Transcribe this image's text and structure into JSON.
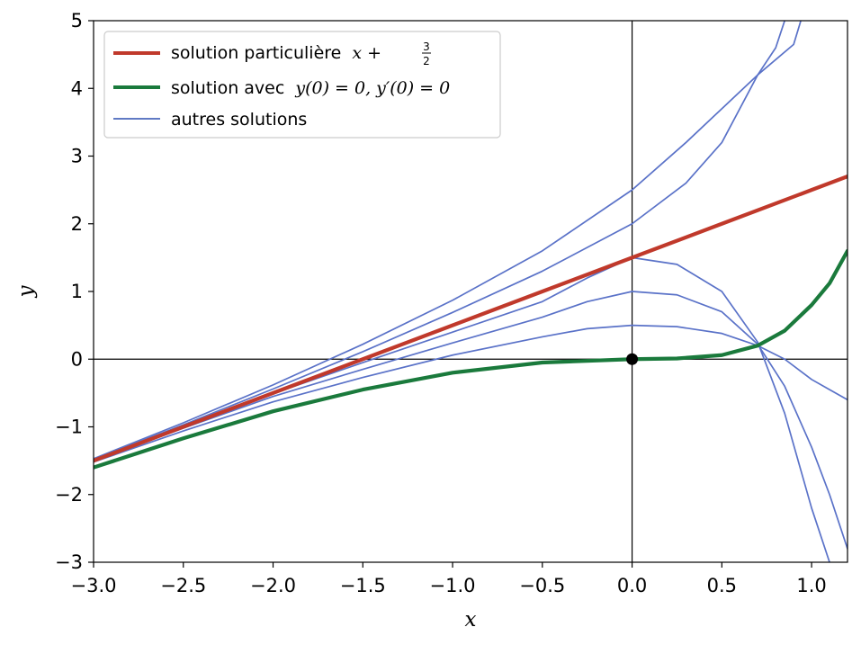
{
  "chart_data": {
    "type": "line",
    "title": "",
    "xlabel": "x",
    "ylabel": "y",
    "xlim": [
      -3.0,
      1.2
    ],
    "ylim": [
      -3,
      5
    ],
    "x_ticks": [
      "−3.0",
      "−2.5",
      "−2.0",
      "−1.5",
      "−1.0",
      "−0.5",
      "0.0",
      "0.5",
      "1.0"
    ],
    "x_tick_values": [
      -3.0,
      -2.5,
      -2.0,
      -1.5,
      -1.0,
      -0.5,
      0.0,
      0.5,
      1.0
    ],
    "y_ticks": [
      "−3",
      "−2",
      "−1",
      "0",
      "1",
      "2",
      "3",
      "4",
      "5"
    ],
    "y_tick_values": [
      -3,
      -2,
      -1,
      0,
      1,
      2,
      3,
      4,
      5
    ],
    "grid": false,
    "reference_lines": {
      "x": 0,
      "y": 0
    },
    "legend_position": "top-left",
    "legend": [
      {
        "label": "solution particulière",
        "math": "x + ",
        "frac_num": "3",
        "frac_den": "2",
        "color": "#c0392b"
      },
      {
        "label": "solution avec",
        "math": "y(0) = 0, y′(0) = 0",
        "color": "#1a7a3c"
      },
      {
        "label": "autres solutions",
        "color": "#2c4fb0"
      }
    ],
    "marked_point": {
      "x": 0,
      "y": 0,
      "color": "#000000"
    },
    "series": [
      {
        "role": "particular",
        "color": "#c0392b",
        "points": [
          [
            -3.0,
            -1.5
          ],
          [
            -2.5,
            -1.0
          ],
          [
            -2.0,
            -0.5
          ],
          [
            -1.5,
            0.0
          ],
          [
            -1.0,
            0.5
          ],
          [
            -0.5,
            1.0
          ],
          [
            0.0,
            1.5
          ],
          [
            0.5,
            2.0
          ],
          [
            1.0,
            2.5
          ],
          [
            1.2,
            2.7
          ]
        ]
      },
      {
        "role": "initial-condition",
        "color": "#1a7a3c",
        "points": [
          [
            -3.0,
            -1.6
          ],
          [
            -2.5,
            -1.17
          ],
          [
            -2.0,
            -0.77
          ],
          [
            -1.5,
            -0.45
          ],
          [
            -1.0,
            -0.2
          ],
          [
            -0.5,
            -0.05
          ],
          [
            0.0,
            0.0
          ],
          [
            0.25,
            0.01
          ],
          [
            0.5,
            0.06
          ],
          [
            0.7,
            0.2
          ],
          [
            0.85,
            0.42
          ],
          [
            1.0,
            0.8
          ],
          [
            1.1,
            1.12
          ],
          [
            1.2,
            1.6
          ]
        ]
      },
      {
        "role": "other",
        "color": "#5a72c8",
        "points": [
          [
            -3.0,
            -1.47
          ],
          [
            -2.5,
            -0.94
          ],
          [
            -2.0,
            -0.38
          ],
          [
            -1.5,
            0.22
          ],
          [
            -1.0,
            0.87
          ],
          [
            -0.5,
            1.6
          ],
          [
            0.0,
            2.5
          ],
          [
            0.3,
            3.2
          ],
          [
            0.5,
            3.7
          ],
          [
            0.7,
            4.2
          ],
          [
            0.9,
            4.65
          ],
          [
            0.94,
            5.0
          ]
        ]
      },
      {
        "role": "other",
        "color": "#5a72c8",
        "points": [
          [
            -3.0,
            -1.48
          ],
          [
            -2.5,
            -0.97
          ],
          [
            -2.0,
            -0.44
          ],
          [
            -1.5,
            0.11
          ],
          [
            -1.0,
            0.69
          ],
          [
            -0.5,
            1.3
          ],
          [
            0.0,
            2.0
          ],
          [
            0.3,
            2.6
          ],
          [
            0.5,
            3.2
          ],
          [
            0.7,
            4.2
          ],
          [
            0.8,
            4.6
          ],
          [
            0.85,
            5.0
          ]
        ]
      },
      {
        "role": "other",
        "color": "#5a72c8",
        "points": [
          [
            -3.0,
            -1.5
          ],
          [
            -2.5,
            -1.0
          ],
          [
            -2.0,
            -0.51
          ],
          [
            -1.5,
            -0.05
          ],
          [
            -1.0,
            0.4
          ],
          [
            -0.5,
            0.85
          ],
          [
            -0.25,
            1.2
          ],
          [
            0.0,
            1.5
          ],
          [
            0.25,
            1.4
          ],
          [
            0.5,
            1.0
          ],
          [
            0.7,
            0.25
          ],
          [
            0.85,
            -0.8
          ],
          [
            1.0,
            -2.2
          ],
          [
            1.1,
            -3.0
          ]
        ]
      },
      {
        "role": "other",
        "color": "#5a72c8",
        "points": [
          [
            -3.0,
            -1.5
          ],
          [
            -2.5,
            -1.02
          ],
          [
            -2.0,
            -0.55
          ],
          [
            -1.5,
            -0.15
          ],
          [
            -1.0,
            0.24
          ],
          [
            -0.5,
            0.62
          ],
          [
            -0.25,
            0.85
          ],
          [
            0.0,
            1.0
          ],
          [
            0.25,
            0.95
          ],
          [
            0.5,
            0.7
          ],
          [
            0.7,
            0.22
          ],
          [
            0.85,
            -0.4
          ],
          [
            1.0,
            -1.3
          ],
          [
            1.1,
            -2.0
          ],
          [
            1.2,
            -2.8
          ]
        ]
      },
      {
        "role": "other",
        "color": "#5a72c8",
        "points": [
          [
            -3.0,
            -1.52
          ],
          [
            -2.5,
            -1.06
          ],
          [
            -2.0,
            -0.63
          ],
          [
            -1.5,
            -0.27
          ],
          [
            -1.0,
            0.06
          ],
          [
            -0.5,
            0.33
          ],
          [
            -0.25,
            0.45
          ],
          [
            0.0,
            0.5
          ],
          [
            0.25,
            0.48
          ],
          [
            0.5,
            0.38
          ],
          [
            0.7,
            0.2
          ],
          [
            0.85,
            0.0
          ],
          [
            1.0,
            -0.3
          ],
          [
            1.1,
            -0.45
          ],
          [
            1.2,
            -0.6
          ]
        ]
      }
    ]
  }
}
